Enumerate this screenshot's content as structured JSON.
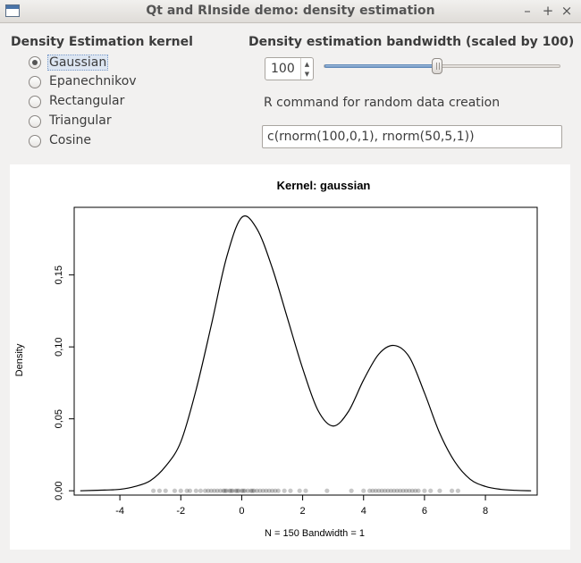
{
  "window": {
    "title": "Qt and RInside demo: density estimation",
    "buttons": {
      "minimize": "–",
      "maximize": "+",
      "close": "×"
    }
  },
  "kernel_group": {
    "label": "Density Estimation kernel",
    "options": [
      "Gaussian",
      "Epanechnikov",
      "Rectangular",
      "Triangular",
      "Cosine"
    ],
    "selected": "Gaussian"
  },
  "bandwidth_group": {
    "label": "Density estimation bandwidth (scaled by 100)",
    "value": "100",
    "slider_fraction": 0.48
  },
  "command": {
    "label": "R command for random data creation",
    "value": "c(rnorm(100,0,1), rnorm(50,5,1))"
  },
  "chart_data": {
    "type": "line",
    "title": "Kernel: gaussian",
    "xlabel": "N = 150   Bandwidth = 1",
    "ylabel": "Density",
    "xlim": [
      -5.5,
      9.7
    ],
    "ylim": [
      -0.003,
      0.197
    ],
    "x_ticks": [
      "-4",
      "-2",
      "0",
      "2",
      "4",
      "6",
      "8"
    ],
    "x_tick_values": [
      -4,
      -2,
      0,
      2,
      4,
      6,
      8
    ],
    "y_ticks": [
      "0,00",
      "0,05",
      "0,10",
      "0,15"
    ],
    "y_tick_values": [
      0,
      0.05,
      0.1,
      0.15
    ],
    "series": [
      {
        "x": [
          -5.3,
          -4.5,
          -4,
          -3.5,
          -3,
          -2.5,
          -2,
          -1.5,
          -1,
          -0.5,
          0,
          0.5,
          1,
          1.5,
          2,
          2.5,
          3,
          3.5,
          4,
          4.5,
          5,
          5.5,
          6,
          6.5,
          7,
          7.5,
          8,
          8.5,
          9,
          9.5
        ],
        "y": [
          0,
          0.0005,
          0.001,
          0.003,
          0.007,
          0.017,
          0.034,
          0.07,
          0.115,
          0.162,
          0.19,
          0.182,
          0.155,
          0.12,
          0.085,
          0.056,
          0.045,
          0.055,
          0.077,
          0.095,
          0.101,
          0.093,
          0.068,
          0.04,
          0.02,
          0.008,
          0.003,
          0.001,
          0.0003,
          0
        ]
      }
    ],
    "rug": [
      -2.9,
      -2.7,
      -2.5,
      -2.2,
      -2.0,
      -1.8,
      -1.7,
      -1.5,
      -1.35,
      -1.2,
      -1.1,
      -1.0,
      -0.9,
      -0.8,
      -0.7,
      -0.6,
      -0.55,
      -0.5,
      -0.4,
      -0.35,
      -0.3,
      -0.2,
      -0.15,
      -0.1,
      0.0,
      0.05,
      0.1,
      0.2,
      0.3,
      0.35,
      0.4,
      0.5,
      0.6,
      0.7,
      0.8,
      0.9,
      1.0,
      1.1,
      1.2,
      1.4,
      1.6,
      1.9,
      2.1,
      2.8,
      3.6,
      4.0,
      4.2,
      4.3,
      4.4,
      4.5,
      4.6,
      4.7,
      4.8,
      4.9,
      5.0,
      5.1,
      5.2,
      5.3,
      5.4,
      5.5,
      5.6,
      5.7,
      5.8,
      6.0,
      6.2,
      6.5,
      6.9,
      7.1
    ]
  }
}
